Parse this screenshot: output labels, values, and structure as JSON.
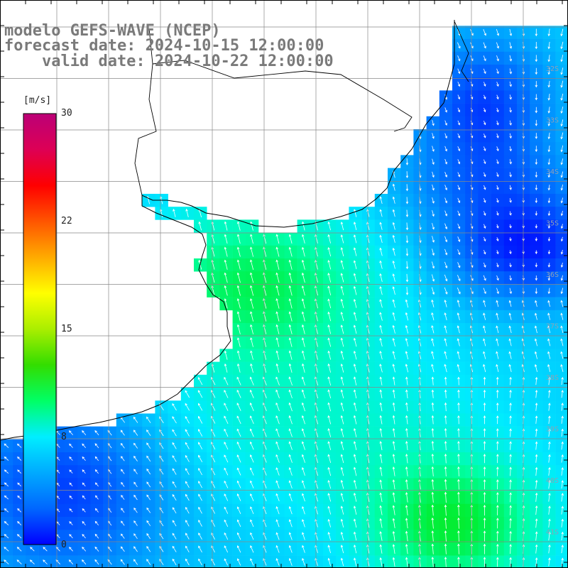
{
  "title": {
    "line1": "modelo GEFS-WAVE (NCEP)",
    "line2": "forecast date: 2024-10-15 12:00:00",
    "line3": "    valid date: 2024-10-22 12:00:00"
  },
  "colorbar": {
    "unit": "[m/s]",
    "ticks": [
      "30",
      "22",
      "15",
      "8",
      "0"
    ],
    "tick_values": [
      30,
      22,
      15,
      8,
      0
    ],
    "colors": [
      "#0000ff",
      "#0066ff",
      "#00aaff",
      "#00eeff",
      "#00ff66",
      "#33dd00",
      "#aaee00",
      "#ffff00",
      "#ffaa00",
      "#ff5500",
      "#ff0000",
      "#dd0055",
      "#bb0077"
    ]
  },
  "map": {
    "land_color": "#ffffff",
    "grid_color": "#888888",
    "coast_color": "#000000",
    "arrow_color": "#ffffff",
    "lat_labels": [
      "32S",
      "33S",
      "34S",
      "35S",
      "36S",
      "37S",
      "38S",
      "39S",
      "40S",
      "41S"
    ]
  }
}
